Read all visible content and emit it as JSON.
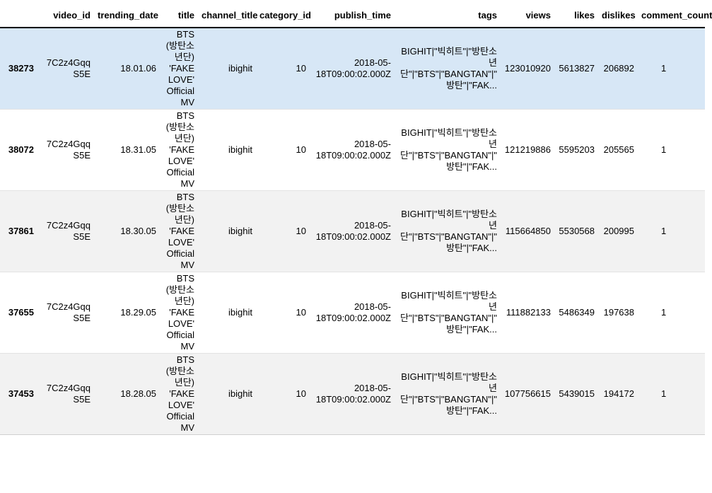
{
  "colors": {
    "row_highlight": "#d7e7f6",
    "alt_row": "#f2f2f2",
    "header_border": "#000000",
    "row_border": "#e3e3e3",
    "text": "#000000"
  },
  "table": {
    "columns": [
      {
        "key": "index",
        "label": ""
      },
      {
        "key": "video_id",
        "label": "video_id"
      },
      {
        "key": "trending_date",
        "label": "trending_date"
      },
      {
        "key": "title",
        "label": "title"
      },
      {
        "key": "channel_title",
        "label": "channel_title"
      },
      {
        "key": "category_id",
        "label": "category_id"
      },
      {
        "key": "publish_time",
        "label": "publish_time"
      },
      {
        "key": "tags",
        "label": "tags"
      },
      {
        "key": "views",
        "label": "views"
      },
      {
        "key": "likes",
        "label": "likes"
      },
      {
        "key": "dislikes",
        "label": "dislikes"
      },
      {
        "key": "comment_partial",
        "label": "comment_count"
      }
    ],
    "rows": [
      {
        "index": "38273",
        "video_id": "7C2z4GqqS5E",
        "trending_date": "18.01.06",
        "title": "BTS (방탄소년단) 'FAKE LOVE' Official MV",
        "channel_title": "ibighit",
        "category_id": "10",
        "publish_time": "2018-05-18T09:00:02.000Z",
        "tags": "BIGHIT|\"빅히트\"|\"방탄소년단\"|\"BTS\"|\"BANGTAN\"|\"방탄\"|\"FAK...",
        "views": "123010920",
        "likes": "5613827",
        "dislikes": "206892",
        "comment_partial": "1",
        "highlighted": true
      },
      {
        "index": "38072",
        "video_id": "7C2z4GqqS5E",
        "trending_date": "18.31.05",
        "title": "BTS (방탄소년단) 'FAKE LOVE' Official MV",
        "channel_title": "ibighit",
        "category_id": "10",
        "publish_time": "2018-05-18T09:00:02.000Z",
        "tags": "BIGHIT|\"빅히트\"|\"방탄소년단\"|\"BTS\"|\"BANGTAN\"|\"방탄\"|\"FAK...",
        "views": "121219886",
        "likes": "5595203",
        "dislikes": "205565",
        "comment_partial": "1",
        "highlighted": false
      },
      {
        "index": "37861",
        "video_id": "7C2z4GqqS5E",
        "trending_date": "18.30.05",
        "title": "BTS (방탄소년단) 'FAKE LOVE' Official MV",
        "channel_title": "ibighit",
        "category_id": "10",
        "publish_time": "2018-05-18T09:00:02.000Z",
        "tags": "BIGHIT|\"빅히트\"|\"방탄소년단\"|\"BTS\"|\"BANGTAN\"|\"방탄\"|\"FAK...",
        "views": "115664850",
        "likes": "5530568",
        "dislikes": "200995",
        "comment_partial": "1",
        "highlighted": false
      },
      {
        "index": "37655",
        "video_id": "7C2z4GqqS5E",
        "trending_date": "18.29.05",
        "title": "BTS (방탄소년단) 'FAKE LOVE' Official MV",
        "channel_title": "ibighit",
        "category_id": "10",
        "publish_time": "2018-05-18T09:00:02.000Z",
        "tags": "BIGHIT|\"빅히트\"|\"방탄소년단\"|\"BTS\"|\"BANGTAN\"|\"방탄\"|\"FAK...",
        "views": "111882133",
        "likes": "5486349",
        "dislikes": "197638",
        "comment_partial": "1",
        "highlighted": false
      },
      {
        "index": "37453",
        "video_id": "7C2z4GqqS5E",
        "trending_date": "18.28.05",
        "title": "BTS (방탄소년단) 'FAKE LOVE' Official MV",
        "channel_title": "ibighit",
        "category_id": "10",
        "publish_time": "2018-05-18T09:00:02.000Z",
        "tags": "BIGHIT|\"빅히트\"|\"방탄소년단\"|\"BTS\"|\"BANGTAN\"|\"방탄\"|\"FAK...",
        "views": "107756615",
        "likes": "5439015",
        "dislikes": "194172",
        "comment_partial": "1",
        "highlighted": false
      }
    ]
  }
}
